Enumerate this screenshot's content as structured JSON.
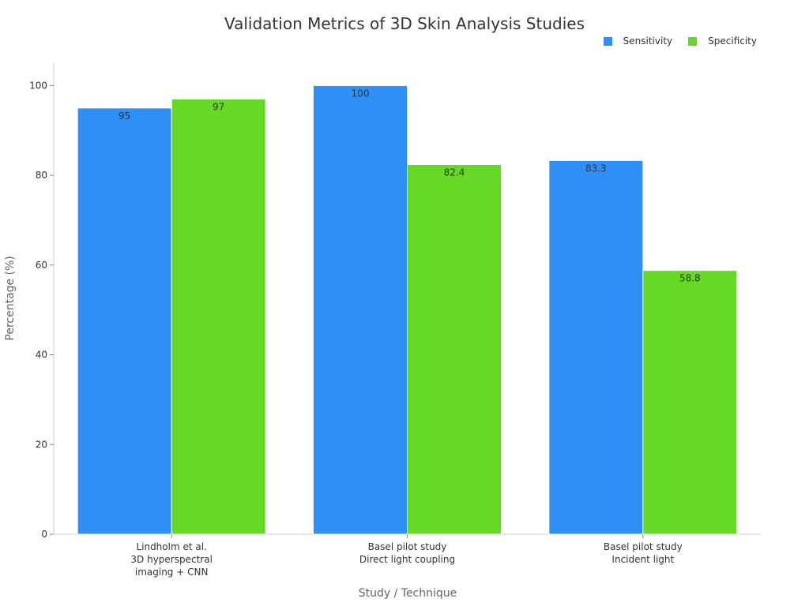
{
  "chart_data": {
    "type": "bar",
    "title": "Validation Metrics of 3D Skin Analysis Studies",
    "xlabel": "Study / Technique",
    "ylabel": "Percentage (%)",
    "categories": [
      [
        "Lindholm et al.",
        "3D hyperspectral",
        "imaging + CNN"
      ],
      [
        "Basel pilot study",
        "Direct light coupling"
      ],
      [
        "Basel pilot study",
        "Incident light"
      ]
    ],
    "series": [
      {
        "name": "Sensitivity",
        "color": "#2e8ff7",
        "values": [
          95,
          100,
          83.3
        ],
        "labels": [
          "95",
          "100",
          "83.3"
        ]
      },
      {
        "name": "Specificity",
        "color": "#66d926",
        "values": [
          97,
          82.4,
          58.8
        ],
        "labels": [
          "97",
          "82.4",
          "58.8"
        ]
      }
    ],
    "ylim": [
      0,
      105
    ],
    "yticks": [
      0,
      20,
      40,
      60,
      80,
      100
    ],
    "legend_position": "top-right",
    "grid": false
  }
}
